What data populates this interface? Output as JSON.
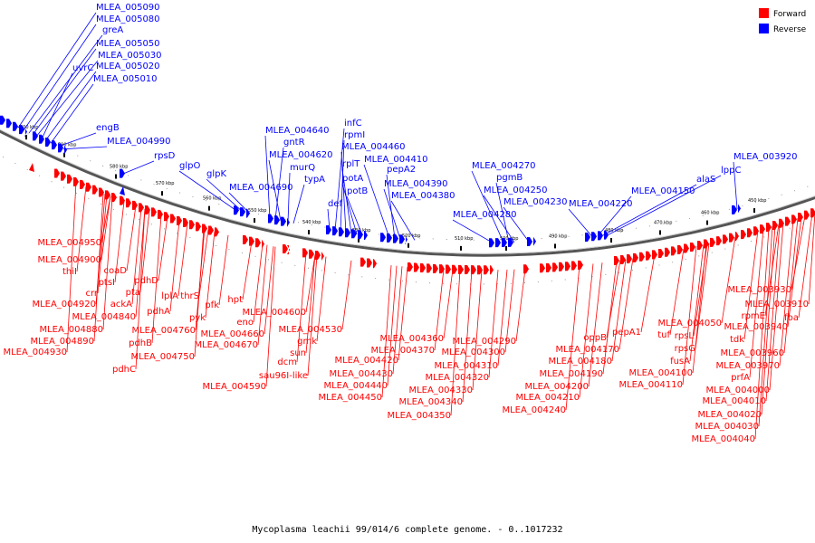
{
  "caption": "Mycoplasma leachii 99/014/6 complete genome. - 0..1017232",
  "legend": [
    {
      "label": "Forward",
      "color": "#ff0000"
    },
    {
      "label": "Reverse",
      "color": "#0000ff"
    }
  ],
  "colors": {
    "forward": "#ff0000",
    "reverse": "#0000ff",
    "backbone": "#777777"
  },
  "ticks": [
    "600 kbp",
    "590 kbp",
    "580 kbp",
    "570 kbp",
    "560 kbp",
    "550 kbp",
    "540 kbp",
    "530 kbp",
    "520 kbp",
    "510 kbp",
    "500 kbp",
    "490 kbp",
    "480 kbp",
    "470 kbp",
    "460 kbp",
    "450 kbp"
  ],
  "reverse_labels": [
    "MLEA_005090",
    "MLEA_005080",
    "greA",
    "MLEA_005050",
    "MLEA_005030",
    "uvrC",
    "MLEA_005020",
    "MLEA_005010",
    "engB",
    "MLEA_004990",
    "rpsD",
    "glpO",
    "glpK",
    "MLEA_004690",
    "MLEA_004640",
    "gntR",
    "MLEA_004620",
    "murQ",
    "typA",
    "def",
    "infC",
    "rpmI",
    "MLEA_004460",
    "rplT",
    "potA",
    "potB",
    "MLEA_004410",
    "pepA2",
    "MLEA_004390",
    "MLEA_004380",
    "MLEA_004280",
    "MLEA_004270",
    "pgmB",
    "MLEA_004250",
    "MLEA_004230",
    "MLEA_004220",
    "MLEA_004150",
    "alaS",
    "lppC",
    "MLEA_003920"
  ],
  "forward_labels": [
    "MLEA_004950",
    "MLEA_004900",
    "thiI",
    "coaD",
    "ptsI",
    "crr",
    "MLEA_004920",
    "ackA",
    "pta",
    "MLEA_004840",
    "MLEA_004880",
    "MLEA_004890",
    "MLEA_004930",
    "pdhD",
    "pdhA",
    "pdhB",
    "pdhC",
    "lplA",
    "thrS",
    "MLEA_004760",
    "MLEA_004750",
    "pyk",
    "pfk",
    "hpt",
    "eno",
    "MLEA_004660",
    "MLEA_004670",
    "MLEA_004600",
    "dcm",
    "sau96I-like",
    "MLEA_004590",
    "MLEA_004530",
    "gmk",
    "sun",
    "MLEA_004420",
    "MLEA_004430",
    "MLEA_004440",
    "MLEA_004450",
    "MLEA_004360",
    "MLEA_004370",
    "MLEA_004320",
    "MLEA_004330",
    "MLEA_004340",
    "MLEA_004350",
    "MLEA_004290",
    "MLEA_004300",
    "MLEA_004310",
    "oppB",
    "MLEA_004170",
    "MLEA_004180",
    "MLEA_004190",
    "MLEA_004200",
    "MLEA_004210",
    "MLEA_004240",
    "pepA1",
    "tuf",
    "rpsL",
    "rpsG",
    "fusA",
    "MLEA_004100",
    "MLEA_004110",
    "MLEA_004050",
    "tdk",
    "rpmE",
    "MLEA_003940",
    "MLEA_003960",
    "MLEA_003970",
    "prfA",
    "MLEA_004000",
    "MLEA_004010",
    "MLEA_004020",
    "MLEA_004030",
    "MLEA_004040",
    "fba",
    "MLEA_003910",
    "MLEA_003930"
  ]
}
